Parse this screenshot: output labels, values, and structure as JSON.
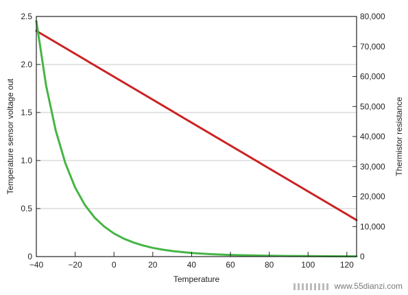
{
  "chart_data": {
    "type": "line",
    "title": "",
    "xlabel": "Temperature",
    "ylabel": "Temperature sensor voltage out",
    "y2label": "Thermistor resistance",
    "xlim": [
      -40,
      125
    ],
    "ylim": [
      0,
      2.5
    ],
    "y2lim": [
      0,
      80000
    ],
    "grid": "horizontal",
    "x_ticks": [
      -40,
      -20,
      0,
      20,
      40,
      60,
      80,
      100,
      120
    ],
    "x_tick_labels": [
      "−40",
      "−20",
      "0",
      "20",
      "40",
      "60",
      "80",
      "100",
      "120"
    ],
    "y_ticks": [
      0,
      0.5,
      1.0,
      1.5,
      2.0,
      2.5
    ],
    "y_tick_labels": [
      "0",
      "0.5",
      "1.0",
      "1.5",
      "2.0",
      "2.5"
    ],
    "y2_ticks": [
      0,
      10000,
      20000,
      30000,
      40000,
      50000,
      60000,
      70000,
      80000
    ],
    "y2_tick_labels": [
      "0",
      "10,000",
      "20,000",
      "30,000",
      "40,000",
      "50,000",
      "60,000",
      "70,000",
      "80,000"
    ],
    "series": [
      {
        "axis": "left",
        "color": "#cc2222",
        "x": [
          -40,
          125
        ],
        "y": [
          2.35,
          0.38
        ]
      },
      {
        "axis": "right",
        "color": "#44b544",
        "x": [
          -40,
          -35,
          -30,
          -25,
          -20,
          -15,
          -10,
          -5,
          0,
          5,
          10,
          15,
          20,
          25,
          30,
          35,
          40,
          50,
          60,
          70,
          80,
          90,
          100,
          110,
          125
        ],
        "y": [
          78500,
          57000,
          42000,
          31000,
          23000,
          17200,
          13000,
          10000,
          7700,
          6000,
          4700,
          3700,
          2900,
          2300,
          1850,
          1500,
          1200,
          800,
          540,
          380,
          270,
          200,
          150,
          110,
          80
        ]
      }
    ]
  },
  "watermark": {
    "text": "www.55dianzi.com"
  }
}
